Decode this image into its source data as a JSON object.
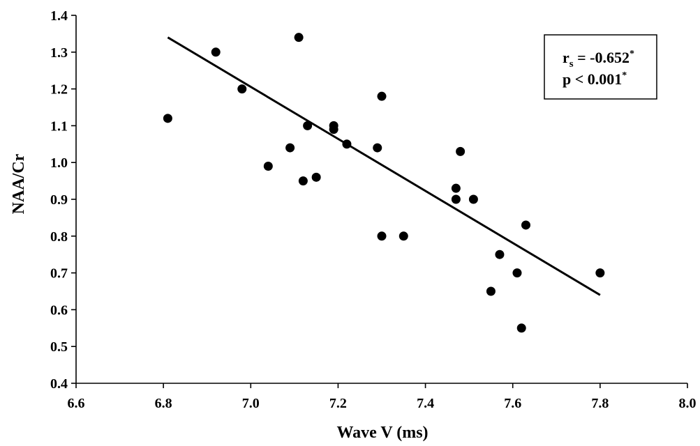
{
  "chart_data": {
    "type": "scatter",
    "title": "",
    "xlabel": "Wave V (ms)",
    "ylabel": "NAA/Cr",
    "xlim": [
      6.6,
      8.0
    ],
    "ylim": [
      0.4,
      1.4
    ],
    "x_ticks": [
      "6.6",
      "6.8",
      "7.0",
      "7.2",
      "7.4",
      "7.6",
      "7.8",
      "8.0"
    ],
    "y_ticks": [
      "0.4",
      "0.5",
      "0.6",
      "0.7",
      "0.8",
      "0.9",
      "1.0",
      "1.1",
      "1.2",
      "1.3",
      "1.4"
    ],
    "grid": false,
    "points": [
      {
        "x": 6.81,
        "y": 1.12
      },
      {
        "x": 6.92,
        "y": 1.3
      },
      {
        "x": 6.98,
        "y": 1.2
      },
      {
        "x": 7.04,
        "y": 0.99
      },
      {
        "x": 7.09,
        "y": 1.04
      },
      {
        "x": 7.11,
        "y": 1.34
      },
      {
        "x": 7.12,
        "y": 0.95
      },
      {
        "x": 7.13,
        "y": 1.1
      },
      {
        "x": 7.15,
        "y": 0.96
      },
      {
        "x": 7.19,
        "y": 1.1
      },
      {
        "x": 7.19,
        "y": 1.09
      },
      {
        "x": 7.22,
        "y": 1.05
      },
      {
        "x": 7.29,
        "y": 1.04
      },
      {
        "x": 7.3,
        "y": 1.18
      },
      {
        "x": 7.3,
        "y": 0.8
      },
      {
        "x": 7.35,
        "y": 0.8
      },
      {
        "x": 7.47,
        "y": 0.93
      },
      {
        "x": 7.47,
        "y": 0.9
      },
      {
        "x": 7.48,
        "y": 1.03
      },
      {
        "x": 7.51,
        "y": 0.9
      },
      {
        "x": 7.55,
        "y": 0.65
      },
      {
        "x": 7.57,
        "y": 0.75
      },
      {
        "x": 7.61,
        "y": 0.7
      },
      {
        "x": 7.62,
        "y": 0.55
      },
      {
        "x": 7.63,
        "y": 0.83
      },
      {
        "x": 7.8,
        "y": 0.7
      }
    ],
    "trendline": {
      "x": [
        6.81,
        7.8
      ],
      "y": [
        1.34,
        0.64
      ]
    },
    "annotation": {
      "line1_prefix": "r",
      "line1_subscript": "s",
      "line1_value": " = -0.652",
      "line1_superscript": "*",
      "line2_value": "p < 0.001",
      "line2_superscript": "*",
      "position": "top-right"
    },
    "colors": {
      "marker": "#000000",
      "line": "#000000",
      "axis": "#000000"
    }
  }
}
